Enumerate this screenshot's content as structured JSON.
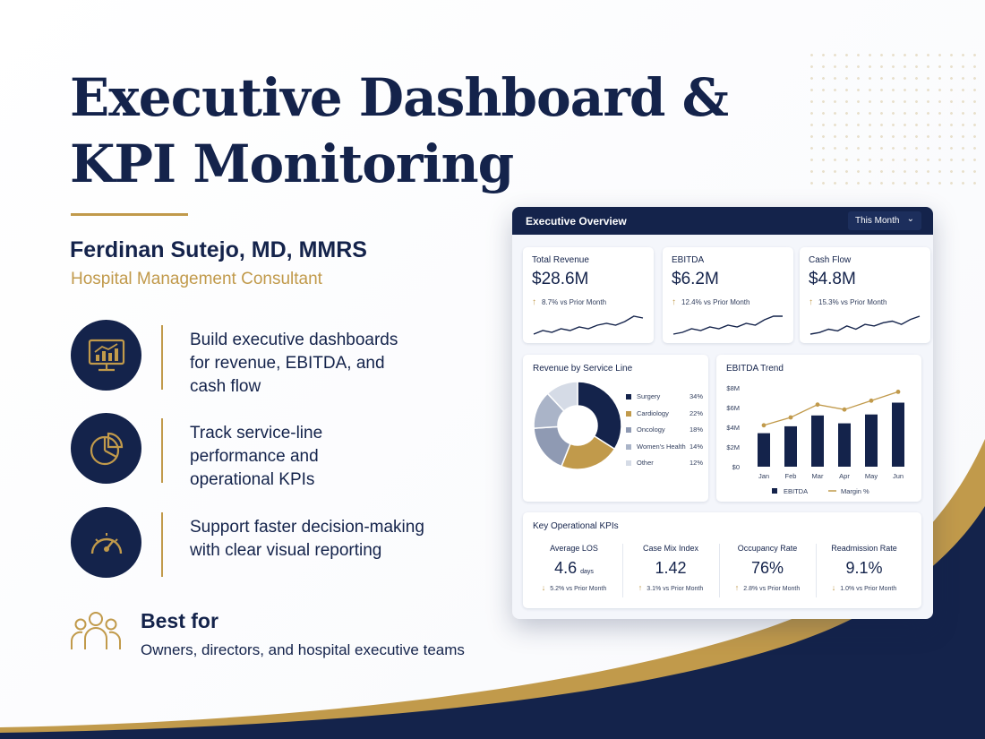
{
  "hero": {
    "title_line1": "Executive Dashboard &",
    "title_line2": "KPI Monitoring",
    "author": "Ferdinan Sutejo, MD, MMRS",
    "role": "Hospital Management Consultant"
  },
  "features": [
    {
      "icon": "monitor-chart-icon",
      "line1": "Build executive dashboards",
      "line2": "for revenue, EBITDA, and",
      "line3": "cash flow"
    },
    {
      "icon": "pie-chart-icon",
      "line1": "Track service-line",
      "line2": "performance and",
      "line3": "operational KPIs"
    },
    {
      "icon": "speedometer-icon",
      "line1": "Support faster decision-making",
      "line2": "with clear visual reporting"
    }
  ],
  "best_for": {
    "icon": "people-group-icon",
    "title": "Best for",
    "text": "Owners, directors, and hospital executive teams"
  },
  "dashboard": {
    "title": "Executive Overview",
    "filter": "This Month",
    "kpis": [
      {
        "label": "Total Revenue",
        "value": "$28.6M",
        "delta": "8.7% vs Prior Month",
        "direction": "up",
        "trend": [
          3,
          5,
          4,
          6,
          5,
          7,
          6,
          8,
          9,
          8,
          10,
          13,
          12
        ]
      },
      {
        "label": "EBITDA",
        "value": "$6.2M",
        "delta": "12.4% vs Prior Month",
        "direction": "up",
        "trend": [
          3,
          4,
          6,
          5,
          7,
          6,
          8,
          7,
          9,
          8,
          11,
          13,
          13
        ]
      },
      {
        "label": "Cash Flow",
        "value": "$4.8M",
        "delta": "15.3% vs Prior Month",
        "direction": "up",
        "trend": [
          3,
          4,
          6,
          5,
          8,
          6,
          9,
          8,
          10,
          11,
          9,
          12,
          14
        ]
      }
    ],
    "service_line": {
      "title": "Revenue by Service Line",
      "slices": [
        {
          "name": "Surgery",
          "value": 34,
          "label": "34%",
          "color": "#14234b"
        },
        {
          "name": "Cardiology",
          "value": 22,
          "label": "22%",
          "color": "#c19a4b"
        },
        {
          "name": "Oncology",
          "value": 18,
          "label": "18%",
          "color": "#8f9ab3"
        },
        {
          "name": "Women's Health",
          "value": 14,
          "label": "14%",
          "color": "#aab4c8"
        },
        {
          "name": "Other",
          "value": 12,
          "label": "12%",
          "color": "#d5dbe6"
        }
      ]
    },
    "ops": {
      "title": "Key Operational KPIs",
      "items": [
        {
          "label": "Average LOS",
          "value": "4.6",
          "unit": "days",
          "delta": "5.2% vs Prior Month",
          "direction": "down"
        },
        {
          "label": "Case Mix Index",
          "value": "1.42",
          "unit": "",
          "delta": "3.1% vs Prior Month",
          "direction": "up"
        },
        {
          "label": "Occupancy Rate",
          "value": "76%",
          "unit": "",
          "delta": "2.8% vs Prior Month",
          "direction": "up"
        },
        {
          "label": "Readmission Rate",
          "value": "9.1%",
          "unit": "",
          "delta": "1.0% vs Prior Month",
          "direction": "down"
        }
      ]
    }
  },
  "chart_data": {
    "type": "bar",
    "title": "EBITDA Trend",
    "categories": [
      "Jan",
      "Feb",
      "Mar",
      "Apr",
      "May",
      "Jun"
    ],
    "y_ticks": [
      "$8M",
      "$6M",
      "$4M",
      "$2M",
      "$0"
    ],
    "ylim": [
      0,
      8
    ],
    "series": [
      {
        "name": "EBITDA",
        "kind": "bar",
        "values": [
          3.4,
          4.1,
          5.2,
          4.4,
          5.3,
          6.5
        ],
        "color": "#14234b"
      },
      {
        "name": "Margin %",
        "kind": "line",
        "values": [
          4.2,
          5.0,
          6.3,
          5.8,
          6.7,
          7.6
        ],
        "color": "#c19a4b"
      }
    ],
    "legend": "bottom",
    "grid": false
  }
}
